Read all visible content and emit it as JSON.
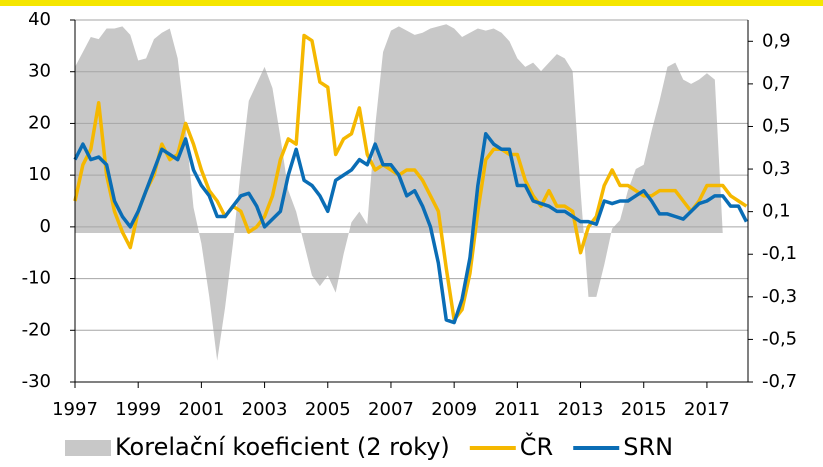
{
  "chart_data": {
    "type": "line",
    "x": [
      1997,
      1997.25,
      1997.5,
      1997.75,
      1998,
      1998.25,
      1998.5,
      1998.75,
      1999,
      1999.25,
      1999.5,
      1999.75,
      2000,
      2000.25,
      2000.5,
      2000.75,
      2001,
      2001.25,
      2001.5,
      2001.75,
      2002,
      2002.25,
      2002.5,
      2002.75,
      2003,
      2003.25,
      2003.5,
      2003.75,
      2004,
      2004.25,
      2004.5,
      2004.75,
      2005,
      2005.25,
      2005.5,
      2005.75,
      2006,
      2006.25,
      2006.5,
      2006.75,
      2007,
      2007.25,
      2007.5,
      2007.75,
      2008,
      2008.25,
      2008.5,
      2008.75,
      2009,
      2009.25,
      2009.5,
      2009.75,
      2010,
      2010.25,
      2010.5,
      2010.75,
      2011,
      2011.25,
      2011.5,
      2011.75,
      2012,
      2012.25,
      2012.5,
      2012.75,
      2013,
      2013.25,
      2013.5,
      2013.75,
      2014,
      2014.25,
      2014.5,
      2014.75,
      2015,
      2015.25,
      2015.5,
      2015.75,
      2016,
      2016.25,
      2016.5,
      2016.75,
      2017,
      2017.25,
      2017.5,
      2017.75,
      2018,
      2018.25
    ],
    "series": [
      {
        "name": "Korelační koeficient (2 roky)",
        "color": "#c8c8c8",
        "type": "area",
        "axis": "y2",
        "values": [
          0.78,
          0.85,
          0.92,
          0.91,
          0.96,
          0.96,
          0.97,
          0.93,
          0.81,
          0.82,
          0.91,
          0.94,
          0.96,
          0.82,
          0.5,
          0.12,
          -0.05,
          -0.3,
          -0.6,
          -0.35,
          -0.05,
          0.3,
          0.62,
          0.7,
          0.78,
          0.68,
          0.45,
          0.2,
          0.1,
          -0.05,
          -0.2,
          -0.25,
          -0.2,
          -0.28,
          -0.1,
          0.05,
          0.1,
          0.04,
          0.5,
          0.85,
          0.95,
          0.97,
          0.95,
          0.93,
          0.94,
          0.96,
          0.97,
          0.98,
          0.96,
          0.92,
          0.94,
          0.96,
          0.95,
          0.96,
          0.94,
          0.9,
          0.82,
          0.78,
          0.8,
          0.76,
          0.8,
          0.84,
          0.82,
          0.76,
          0.2,
          -0.3,
          -0.3,
          -0.15,
          0.02,
          0.06,
          0.2,
          0.3,
          0.32,
          0.48,
          0.62,
          0.78,
          0.8,
          0.72,
          0.7,
          0.72,
          0.75,
          0.72,
          0,
          0,
          0,
          0
        ]
      },
      {
        "name": "ČR",
        "color": "#f5b800",
        "type": "line",
        "values": [
          5,
          12,
          15,
          24,
          10,
          3,
          -1,
          -4,
          3,
          7,
          10,
          16,
          13,
          14,
          20,
          16,
          11,
          7,
          5,
          2,
          4,
          3,
          -1,
          0,
          2,
          6,
          13,
          17,
          16,
          37,
          36,
          28,
          27,
          14,
          17,
          18,
          23,
          14,
          11,
          12,
          11,
          10,
          11,
          11,
          9,
          6,
          3,
          -8,
          -18,
          -16,
          -9,
          3,
          13,
          15,
          15,
          14,
          14,
          9,
          6,
          4,
          7,
          4,
          4,
          3,
          -5,
          0,
          2,
          8,
          11,
          8,
          8,
          7,
          6,
          6,
          7,
          7,
          7,
          5,
          3,
          5,
          8,
          8,
          8,
          6,
          5,
          4
        ]
      },
      {
        "name": "SRN",
        "color": "#0a6db5",
        "type": "line",
        "values": [
          13,
          16,
          13,
          13.5,
          12,
          5,
          2,
          0,
          3,
          7,
          11,
          15,
          14,
          13,
          17,
          11,
          8,
          6,
          2,
          2,
          4,
          6,
          6.5,
          4,
          0,
          1.5,
          3,
          10,
          15,
          9,
          8,
          6,
          3,
          9,
          10,
          11,
          13,
          12,
          16,
          12,
          12,
          10,
          6,
          7,
          4,
          0,
          -7,
          -18,
          -18.5,
          -14,
          -6,
          8,
          18,
          16,
          15,
          15,
          8,
          8,
          5,
          4.5,
          4,
          3,
          3,
          2,
          1,
          1,
          0.5,
          5,
          4.5,
          5,
          5,
          6,
          7,
          5,
          2.5,
          2.5,
          2,
          1.5,
          3,
          4.5,
          5,
          6,
          6,
          4,
          4,
          1
        ]
      }
    ],
    "xlim": [
      1997,
      2018.3
    ],
    "xticks": [
      1997,
      1999,
      2001,
      2003,
      2005,
      2007,
      2009,
      2011,
      2013,
      2015,
      2017
    ],
    "ylim": [
      -30,
      40
    ],
    "yticks": [
      -30,
      -20,
      -10,
      0,
      10,
      20,
      30,
      40
    ],
    "y2lim": [
      -0.7,
      1.0
    ],
    "y2ticks": [
      {
        "value": -0.7,
        "label": "-0,7"
      },
      {
        "value": -0.5,
        "label": "-0,5"
      },
      {
        "value": -0.3,
        "label": "-0,3"
      },
      {
        "value": -0.1,
        "label": "-0,1"
      },
      {
        "value": 0.1,
        "label": "0,1"
      },
      {
        "value": 0.3,
        "label": "0,3"
      },
      {
        "value": 0.5,
        "label": "0,5"
      },
      {
        "value": 0.7,
        "label": "0,7"
      },
      {
        "value": 0.9,
        "label": "0,9"
      }
    ],
    "grid": true,
    "legend": "bottom"
  }
}
